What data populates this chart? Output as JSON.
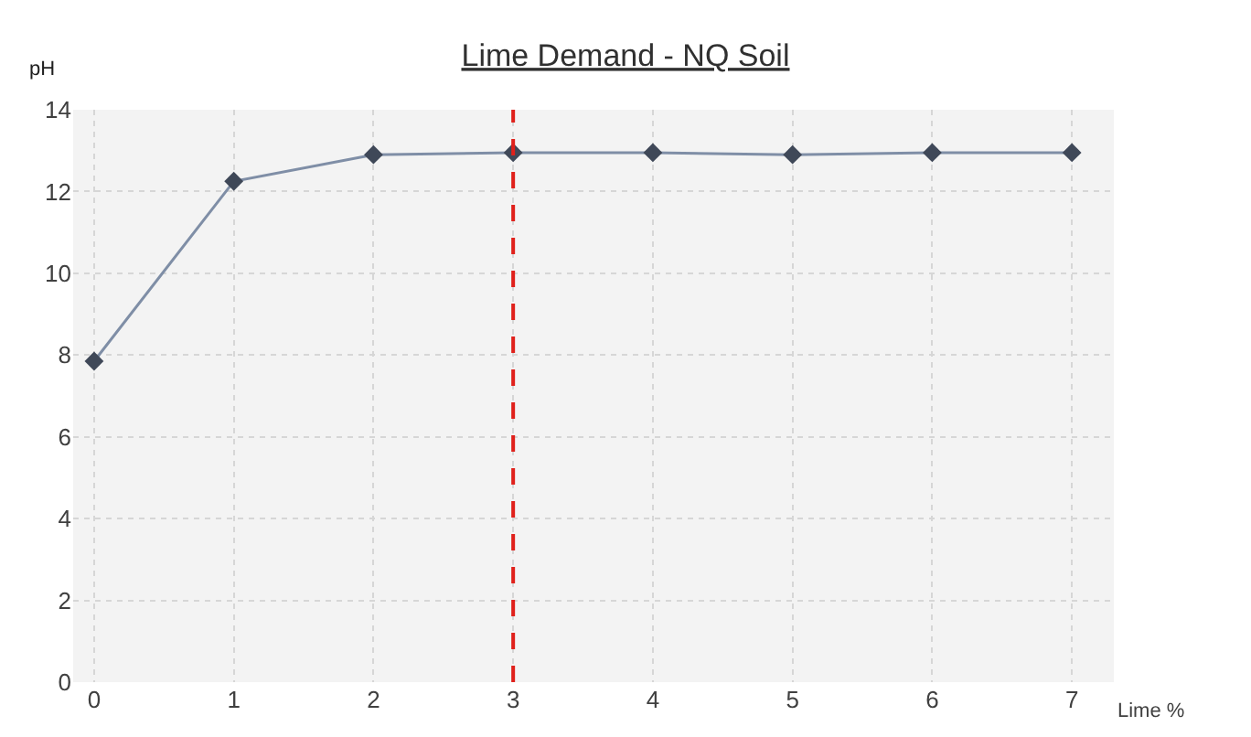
{
  "chart_data": {
    "type": "line",
    "title": "Lime Demand - NQ Soil",
    "xlabel": "Lime %",
    "ylabel": "pH",
    "x": [
      0,
      1,
      2,
      3,
      4,
      5,
      6,
      7
    ],
    "series": [
      {
        "color": "#7f8ea6",
        "values": [
          7.85,
          12.25,
          12.9,
          12.95,
          12.95,
          12.9,
          12.95,
          12.95
        ]
      }
    ],
    "marker": "diamond",
    "line_style": "solid",
    "xlim": [
      -0.15,
      7.3
    ],
    "xticks": [
      0,
      1,
      2,
      3,
      4,
      5,
      6,
      7
    ],
    "ylim": [
      0,
      14
    ],
    "yticks": [
      0,
      2,
      4,
      6,
      8,
      10,
      12,
      14
    ],
    "grid": true,
    "ref_lines": [
      {
        "axis": "x",
        "value": 3,
        "color": "#e0201b",
        "line_style": "dashed"
      }
    ]
  }
}
